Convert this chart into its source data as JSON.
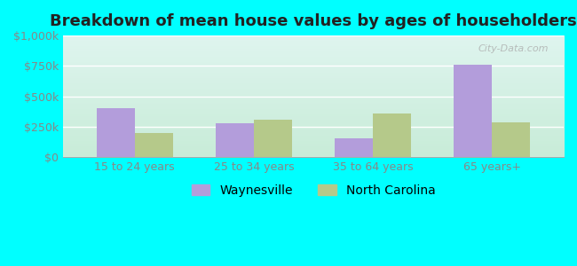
{
  "title": "Breakdown of mean house values by ages of householders",
  "categories": [
    "15 to 24 years",
    "25 to 34 years",
    "35 to 64 years",
    "65 years+"
  ],
  "waynesville": [
    400000,
    280000,
    155000,
    760000
  ],
  "north_carolina": [
    195000,
    305000,
    360000,
    285000
  ],
  "waynesville_color": "#b39ddb",
  "north_carolina_color": "#b5c98a",
  "background_outer": "#00ffff",
  "bg_top": "#dff5ef",
  "bg_bottom": "#c8ecd8",
  "ylim": [
    0,
    1000000
  ],
  "yticks": [
    0,
    250000,
    500000,
    750000,
    1000000
  ],
  "ytick_labels": [
    "$0",
    "$250k",
    "$500k",
    "$750k",
    "$1,000k"
  ],
  "legend_labels": [
    "Waynesville",
    "North Carolina"
  ],
  "watermark": "City-Data.com",
  "title_fontsize": 13,
  "tick_fontsize": 9,
  "legend_fontsize": 10,
  "grid_color": "#ffffff",
  "tick_color": "#888888"
}
